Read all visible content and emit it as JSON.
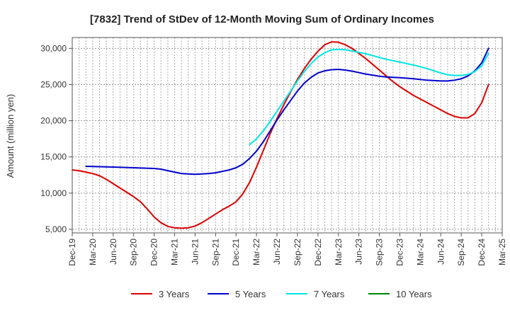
{
  "chart_data": {
    "type": "line",
    "title": "[7832]  Trend of StDev of 12-Month Moving Sum of Ordinary Incomes",
    "xlabel": "",
    "ylabel": "Amount (million yen)",
    "ylim": [
      4500,
      31500
    ],
    "yticks": [
      5000,
      10000,
      15000,
      20000,
      25000,
      30000
    ],
    "ytick_labels": [
      "5,000",
      "10,000",
      "15,000",
      "20,000",
      "25,000",
      "30,000"
    ],
    "x_start": "Dec-19",
    "x_range_months": [
      0,
      63
    ],
    "x_ticks": [
      {
        "m": 0,
        "label": "Dec-19"
      },
      {
        "m": 3,
        "label": "Mar-20"
      },
      {
        "m": 6,
        "label": "Jun-20"
      },
      {
        "m": 9,
        "label": "Sep-20"
      },
      {
        "m": 12,
        "label": "Dec-20"
      },
      {
        "m": 15,
        "label": "Mar-21"
      },
      {
        "m": 18,
        "label": "Jun-21"
      },
      {
        "m": 21,
        "label": "Sep-21"
      },
      {
        "m": 24,
        "label": "Dec-21"
      },
      {
        "m": 27,
        "label": "Mar-22"
      },
      {
        "m": 30,
        "label": "Jun-22"
      },
      {
        "m": 33,
        "label": "Sep-22"
      },
      {
        "m": 36,
        "label": "Dec-22"
      },
      {
        "m": 39,
        "label": "Mar-23"
      },
      {
        "m": 42,
        "label": "Jun-23"
      },
      {
        "m": 45,
        "label": "Sep-23"
      },
      {
        "m": 48,
        "label": "Dec-23"
      },
      {
        "m": 51,
        "label": "Mar-24"
      },
      {
        "m": 54,
        "label": "Jun-24"
      },
      {
        "m": 57,
        "label": "Sep-24"
      },
      {
        "m": 60,
        "label": "Dec-24"
      },
      {
        "m": 63,
        "label": "Mar-25"
      }
    ],
    "grid": true,
    "legend_position": "bottom",
    "series": [
      {
        "name": "3 Years",
        "color": "#dd0000",
        "points": [
          [
            0,
            13200
          ],
          [
            1,
            13100
          ],
          [
            2,
            12900
          ],
          [
            3,
            12700
          ],
          [
            4,
            12400
          ],
          [
            5,
            11900
          ],
          [
            6,
            11300
          ],
          [
            7,
            10700
          ],
          [
            8,
            10100
          ],
          [
            9,
            9500
          ],
          [
            10,
            8800
          ],
          [
            11,
            7800
          ],
          [
            12,
            6700
          ],
          [
            13,
            5900
          ],
          [
            14,
            5400
          ],
          [
            15,
            5200
          ],
          [
            16,
            5150
          ],
          [
            17,
            5200
          ],
          [
            18,
            5450
          ],
          [
            19,
            5900
          ],
          [
            20,
            6500
          ],
          [
            21,
            7100
          ],
          [
            22,
            7700
          ],
          [
            23,
            8200
          ],
          [
            24,
            8800
          ],
          [
            25,
            9900
          ],
          [
            26,
            11500
          ],
          [
            27,
            13600
          ],
          [
            28,
            15900
          ],
          [
            29,
            18200
          ],
          [
            30,
            20300
          ],
          [
            31,
            22200
          ],
          [
            32,
            24000
          ],
          [
            33,
            25700
          ],
          [
            34,
            27200
          ],
          [
            35,
            28500
          ],
          [
            36,
            29600
          ],
          [
            37,
            30500
          ],
          [
            38,
            30900
          ],
          [
            39,
            30850
          ],
          [
            40,
            30500
          ],
          [
            41,
            30000
          ],
          [
            42,
            29300
          ],
          [
            43,
            28600
          ],
          [
            44,
            27800
          ],
          [
            45,
            27000
          ],
          [
            46,
            26200
          ],
          [
            47,
            25400
          ],
          [
            48,
            24700
          ],
          [
            49,
            24100
          ],
          [
            50,
            23500
          ],
          [
            51,
            23000
          ],
          [
            52,
            22500
          ],
          [
            53,
            22000
          ],
          [
            54,
            21500
          ],
          [
            55,
            21000
          ],
          [
            56,
            20600
          ],
          [
            57,
            20400
          ],
          [
            58,
            20400
          ],
          [
            59,
            21000
          ],
          [
            60,
            22500
          ],
          [
            61,
            25000
          ]
        ]
      },
      {
        "name": "5 Years",
        "color": "#0000cc",
        "points": [
          [
            2,
            13700
          ],
          [
            6,
            13600
          ],
          [
            9,
            13500
          ],
          [
            12,
            13400
          ],
          [
            13,
            13300
          ],
          [
            14,
            13100
          ],
          [
            15,
            12900
          ],
          [
            16,
            12700
          ],
          [
            17,
            12650
          ],
          [
            18,
            12600
          ],
          [
            19,
            12650
          ],
          [
            20,
            12700
          ],
          [
            21,
            12800
          ],
          [
            22,
            13000
          ],
          [
            23,
            13200
          ],
          [
            24,
            13500
          ],
          [
            25,
            14000
          ],
          [
            26,
            14800
          ],
          [
            27,
            15800
          ],
          [
            28,
            17100
          ],
          [
            29,
            18600
          ],
          [
            30,
            20100
          ],
          [
            31,
            21500
          ],
          [
            32,
            22800
          ],
          [
            33,
            24100
          ],
          [
            34,
            25200
          ],
          [
            35,
            26000
          ],
          [
            36,
            26600
          ],
          [
            37,
            26900
          ],
          [
            38,
            27050
          ],
          [
            39,
            27100
          ],
          [
            40,
            27000
          ],
          [
            41,
            26850
          ],
          [
            42,
            26650
          ],
          [
            43,
            26450
          ],
          [
            44,
            26300
          ],
          [
            45,
            26150
          ],
          [
            46,
            26050
          ],
          [
            48,
            25950
          ],
          [
            50,
            25800
          ],
          [
            52,
            25600
          ],
          [
            54,
            25500
          ],
          [
            55,
            25500
          ],
          [
            56,
            25600
          ],
          [
            57,
            25800
          ],
          [
            58,
            26200
          ],
          [
            59,
            26900
          ],
          [
            60,
            28000
          ],
          [
            61,
            30000
          ]
        ]
      },
      {
        "name": "7 Years",
        "color": "#00e5e5",
        "points": [
          [
            26,
            16700
          ],
          [
            27,
            17500
          ],
          [
            28,
            18600
          ],
          [
            29,
            19900
          ],
          [
            30,
            21300
          ],
          [
            31,
            22700
          ],
          [
            32,
            24100
          ],
          [
            33,
            25500
          ],
          [
            34,
            26800
          ],
          [
            35,
            27900
          ],
          [
            36,
            28800
          ],
          [
            37,
            29400
          ],
          [
            38,
            29800
          ],
          [
            39,
            29850
          ],
          [
            40,
            29800
          ],
          [
            41,
            29650
          ],
          [
            42,
            29450
          ],
          [
            43,
            29250
          ],
          [
            44,
            29000
          ],
          [
            45,
            28750
          ],
          [
            46,
            28500
          ],
          [
            48,
            28100
          ],
          [
            50,
            27700
          ],
          [
            52,
            27200
          ],
          [
            54,
            26600
          ],
          [
            55,
            26350
          ],
          [
            56,
            26250
          ],
          [
            57,
            26250
          ],
          [
            58,
            26400
          ],
          [
            59,
            26800
          ],
          [
            60,
            27600
          ],
          [
            61,
            29300
          ]
        ]
      },
      {
        "name": "10 Years",
        "color": "#008800",
        "points": []
      }
    ]
  }
}
